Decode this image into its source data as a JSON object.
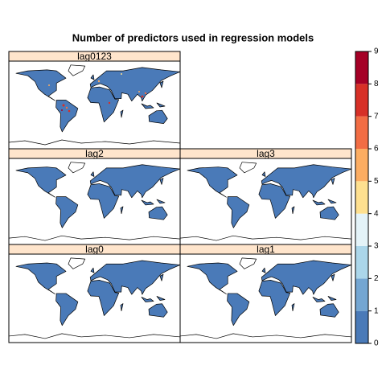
{
  "title": "Number of predictors used in regression models",
  "panels": [
    {
      "label": "lag0123"
    },
    {
      "label": "lag2"
    },
    {
      "label": "lag3"
    },
    {
      "label": "lag0"
    },
    {
      "label": "lag1"
    }
  ],
  "colorbar": {
    "lim": [
      0,
      9
    ],
    "ticks": [
      0,
      1,
      2,
      3,
      4,
      5,
      6,
      7,
      8,
      9
    ],
    "colors": [
      "#4a7ab8",
      "#74a6d2",
      "#abd6ea",
      "#e4f3f8",
      "#fee08f",
      "#fcad62",
      "#f26d44",
      "#d73027",
      "#a50026"
    ]
  }
}
